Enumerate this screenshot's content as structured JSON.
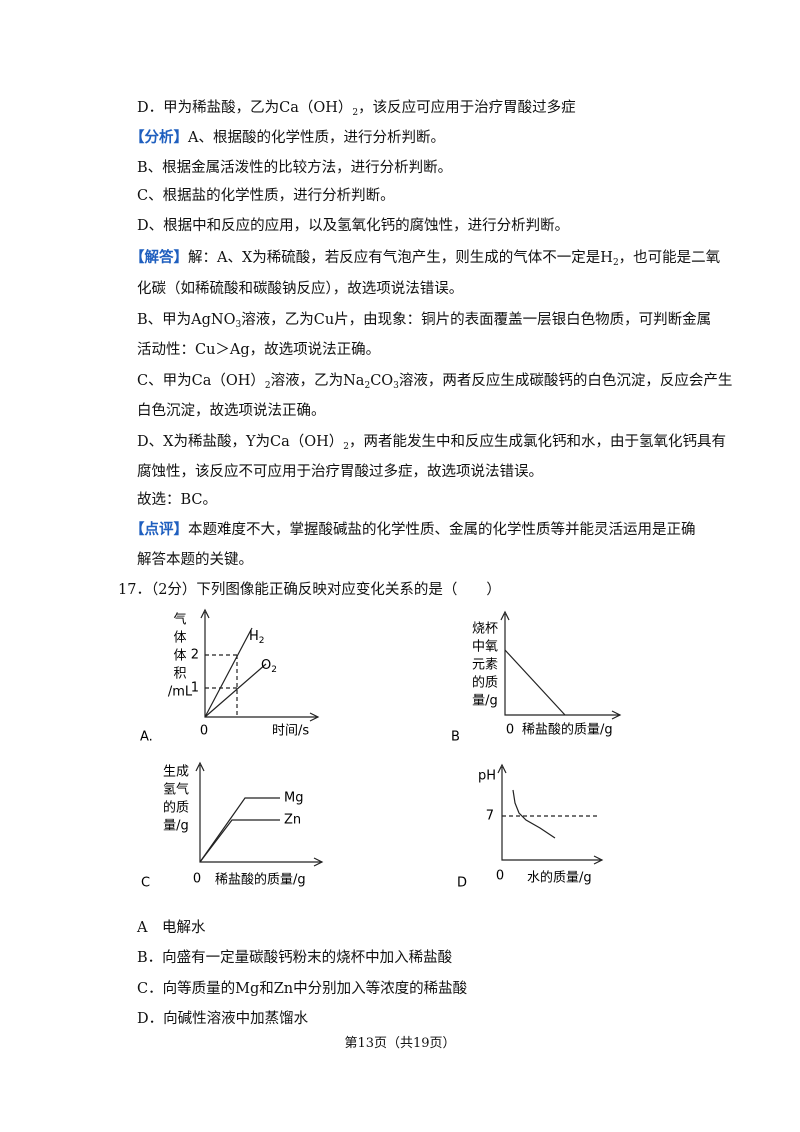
{
  "lines": [
    [
      "D．甲为稀盐酸，乙为Ca（OH）",
      {
        "sub": "2"
      },
      "，该反应可应用于治疗胃酸过多症"
    ],
    [
      {
        "tag": "【分析】"
      },
      "A、根据酸的化学性质，进行分析判断。"
    ],
    [
      "B、根据金属活泼性的比较方法，进行分析判断。"
    ],
    [
      "C、根据盐的化学性质，进行分析判断。"
    ],
    [
      "D、根据中和反应的应用，以及氢氧化钙的腐蚀性，进行分析判断。"
    ],
    [
      {
        "tag": "【解答】"
      },
      "解：A、X为稀硫酸，若反应有气泡产生，则生成的气体不一定是H",
      {
        "sub": "2"
      },
      "，也可能是二氧"
    ],
    [
      "化碳（如稀硫酸和碳酸钠反应），故选项说法错误。"
    ],
    [
      "B、甲为AgNO",
      {
        "sub": "3"
      },
      "溶液，乙为Cu片，由现象：铜片的表面覆盖一层银白色物质，可判断金属"
    ],
    [
      "活动性：Cu＞Ag，故选项说法正确。"
    ],
    [
      "C、甲为Ca（OH）",
      {
        "sub": "2"
      },
      "溶液，乙为Na",
      {
        "sub": "2"
      },
      "CO",
      {
        "sub": "3"
      },
      "溶液，两者反应生成碳酸钙的白色沉淀，反应会产生"
    ],
    [
      "白色沉淀，故选项说法正确。"
    ],
    [
      "D、X为稀盐酸，Y为Ca（OH）",
      {
        "sub": "2"
      },
      "，两者能发生中和反应生成氯化钙和水，由于氢氧化钙具有"
    ],
    [
      "腐蚀性，该反应不可应用于治疗胃酸过多症，故选项说法错误。"
    ],
    [
      "故选：BC。"
    ],
    [
      {
        "tag": "【点评】"
      },
      "本题难度不大，掌握酸碱盐的化学性质、金属的化学性质等并能灵活运用是正确"
    ],
    [
      "解答本题的关键。"
    ]
  ],
  "question": {
    "stem": "17．（2分）下列图像能正确反映对应变化关系的是（　　）",
    "graphs": [
      {
        "letter": "A.",
        "y_label": [
          "气",
          "体",
          "体",
          "积",
          "/mL"
        ],
        "ticks": [
          "2",
          "1"
        ],
        "origin": "0",
        "x_label": "时间/s",
        "curves": [
          {
            "text": "H",
            "sub": "2"
          },
          {
            "text": "O",
            "sub": "2"
          }
        ]
      },
      {
        "letter": "B",
        "y_label": [
          "烧杯",
          "中氧",
          "元素",
          "的质",
          "量/g"
        ],
        "origin": "0",
        "x_label": "稀盐酸的质量/g"
      },
      {
        "letter": "C",
        "y_label": [
          "生成",
          "氢气",
          "的质",
          "量/g"
        ],
        "origin": "0",
        "x_label": "稀盐酸的质量/g",
        "curves": [
          "Mg",
          "Zn"
        ]
      },
      {
        "letter": "D",
        "y_label": [
          "pH"
        ],
        "ticks": [
          "7"
        ],
        "origin": "0",
        "x_label": "水的质量/g"
      }
    ],
    "options": [
      "A　电解水",
      "B．向盛有一定量碳酸钙粉末的烧杯中加入稀盐酸",
      "C．向等质量的Mg和Zn中分别加入等浓度的稀盐酸",
      "D．向碱性溶液中加蒸馏水"
    ]
  },
  "footer": "第13页（共19页）"
}
